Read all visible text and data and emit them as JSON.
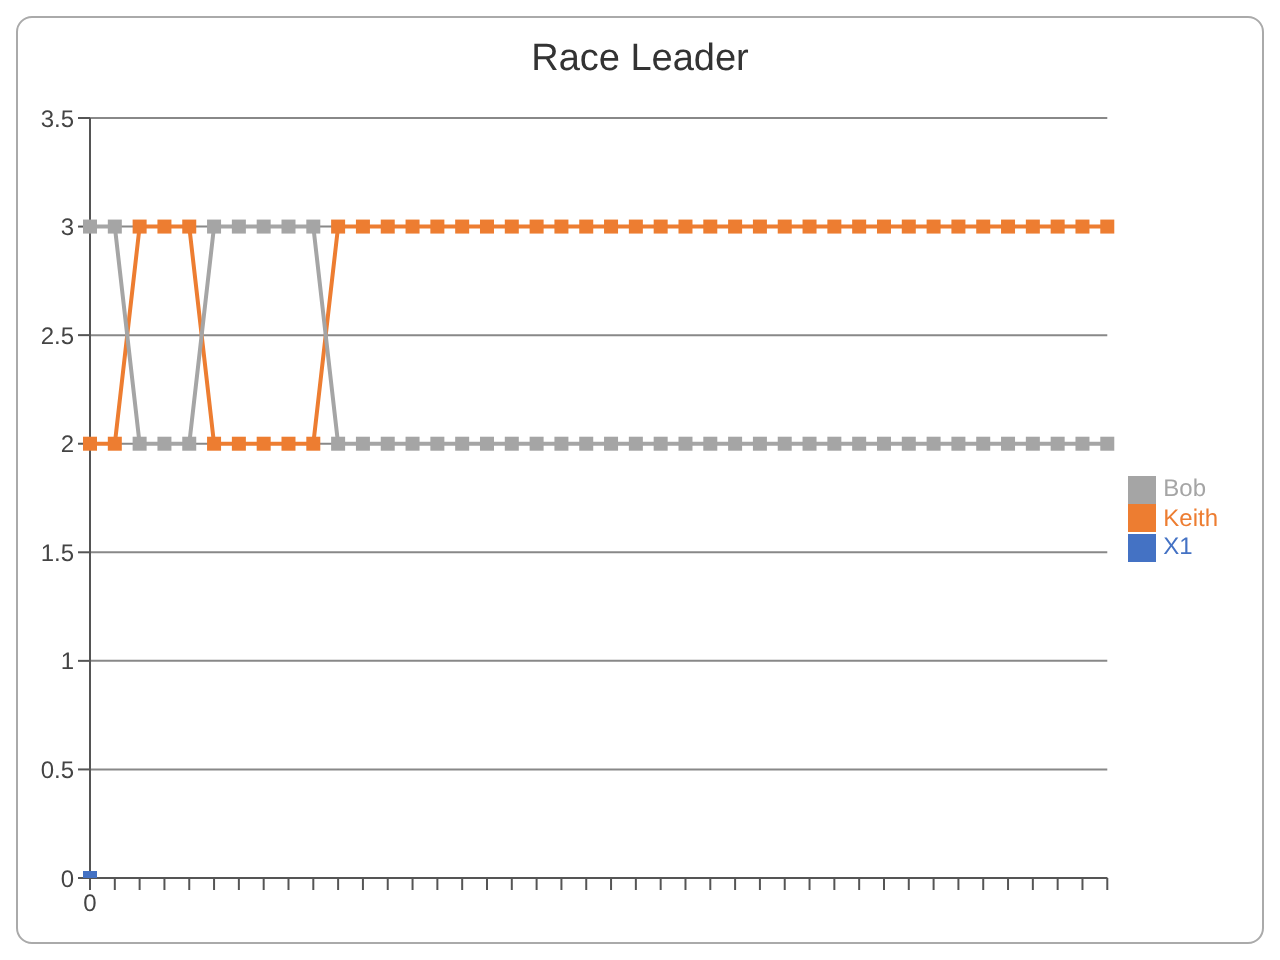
{
  "chart_data": {
    "type": "line",
    "title": "Race Leader",
    "categories": [
      "0",
      null,
      null,
      null,
      null,
      null,
      null,
      null,
      null,
      null,
      null,
      null,
      null,
      null,
      null,
      null,
      null,
      null,
      null,
      null,
      null,
      null,
      null,
      null,
      null,
      null,
      null,
      null,
      null,
      null,
      null,
      null,
      null,
      null,
      null,
      null,
      null,
      null,
      null,
      null,
      null,
      null
    ],
    "series": [
      {
        "name": "X1",
        "color": "#4472c4",
        "values": [
          0,
          null,
          null,
          null,
          null,
          null,
          null,
          null,
          null,
          null,
          null,
          null,
          null,
          null,
          null,
          null,
          null,
          null,
          null,
          null,
          null,
          null,
          null,
          null,
          null,
          null,
          null,
          null,
          null,
          null,
          null,
          null,
          null,
          null,
          null,
          null,
          null,
          null,
          null,
          null,
          null,
          null
        ]
      },
      {
        "name": "Keith",
        "color": "#ed7d31",
        "values": [
          2,
          2,
          3,
          3,
          3,
          2,
          2,
          2,
          2,
          2,
          3,
          3,
          3,
          3,
          3,
          3,
          3,
          3,
          3,
          3,
          3,
          3,
          3,
          3,
          3,
          3,
          3,
          3,
          3,
          3,
          3,
          3,
          3,
          3,
          3,
          3,
          3,
          3,
          3,
          3,
          3,
          3
        ]
      },
      {
        "name": "Bob",
        "color": "#a5a5a5",
        "values": [
          3,
          3,
          2,
          2,
          2,
          3,
          3,
          3,
          3,
          3,
          2,
          2,
          2,
          2,
          2,
          2,
          2,
          2,
          2,
          2,
          2,
          2,
          2,
          2,
          2,
          2,
          2,
          2,
          2,
          2,
          2,
          2,
          2,
          2,
          2,
          2,
          2,
          2,
          2,
          2,
          2,
          2
        ]
      }
    ],
    "ylim": [
      0,
      3.5
    ],
    "yticks": [
      0,
      0.5,
      1,
      1.5,
      2,
      2.5,
      3,
      3.5
    ],
    "grid": "y",
    "legend": "right",
    "marker": "square",
    "line_style": "solid"
  }
}
